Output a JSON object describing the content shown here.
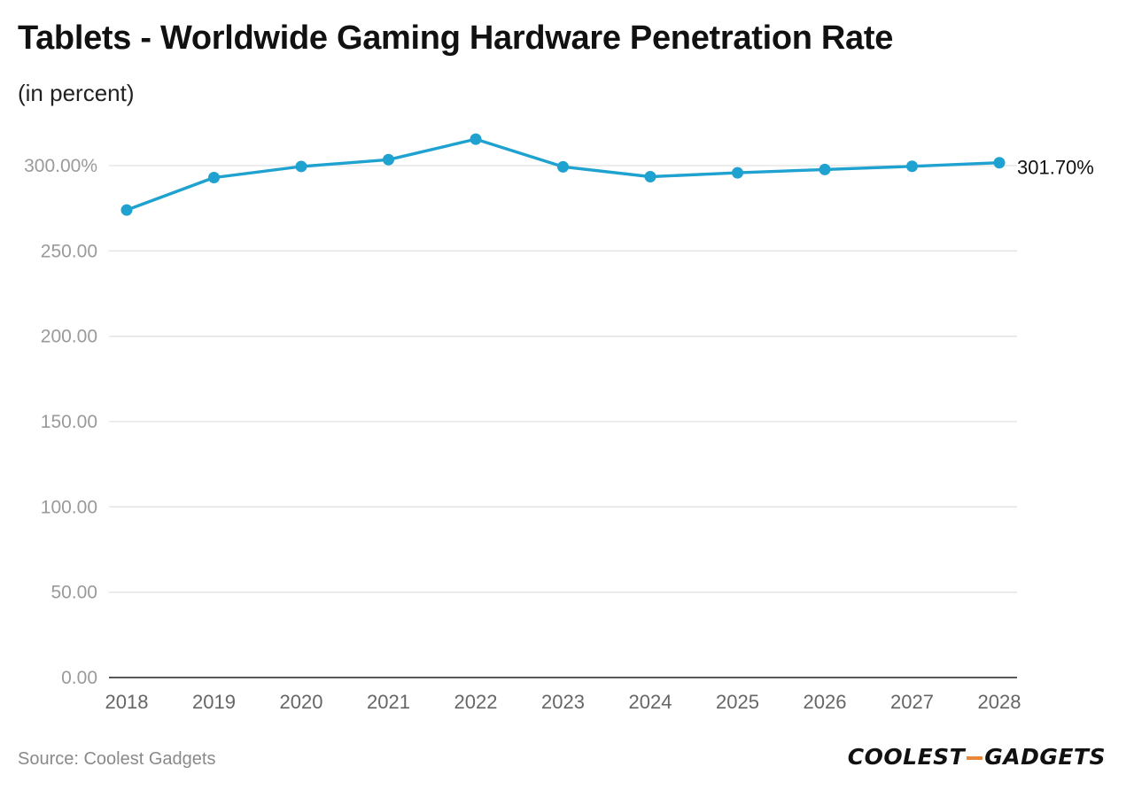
{
  "chart_data": {
    "type": "line",
    "title": "Tablets - Worldwide Gaming Hardware Penetration Rate",
    "subtitle": "(in percent)",
    "xlabel": "",
    "ylabel": "",
    "categories": [
      "2018",
      "2019",
      "2020",
      "2021",
      "2022",
      "2023",
      "2024",
      "2025",
      "2026",
      "2027",
      "2028"
    ],
    "series": [
      {
        "name": "Tablets",
        "values": [
          274.0,
          293.0,
          299.5,
          303.5,
          315.5,
          299.3,
          293.5,
          295.8,
          297.7,
          299.6,
          301.7
        ]
      }
    ],
    "ylim": [
      0,
      300
    ],
    "yticks": [
      {
        "value": 0,
        "label": "0.00"
      },
      {
        "value": 50,
        "label": "50.00"
      },
      {
        "value": 100,
        "label": "100.00"
      },
      {
        "value": 150,
        "label": "150.00"
      },
      {
        "value": 200,
        "label": "200.00"
      },
      {
        "value": 250,
        "label": "250.00"
      },
      {
        "value": 300,
        "label": "300.00%"
      }
    ],
    "end_label": "301.70%",
    "grid": true,
    "line_color": "#1fa2cf",
    "grid_color": "#e2e2e2",
    "axis_color": "#222222",
    "tick_color": "#9a9a9a"
  },
  "footer": {
    "source": "Source: Coolest Gadgets",
    "brand_left": "COOLEST",
    "brand_right": "GADGETS"
  }
}
